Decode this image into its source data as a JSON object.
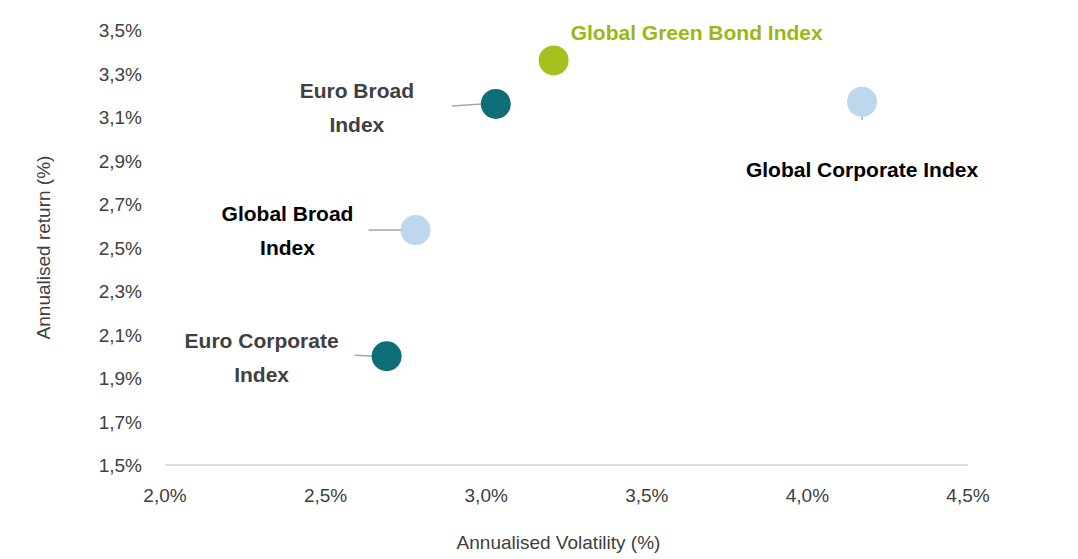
{
  "chart_data": {
    "type": "scatter",
    "xlabel": "Annualised Volatility (%)",
    "ylabel": "Annualised return (%)",
    "marker": "circle",
    "xlim": [
      2.0,
      4.5
    ],
    "xticks": [
      {
        "value": 2.0,
        "label": "2,0%"
      },
      {
        "value": 2.5,
        "label": "2,5%"
      },
      {
        "value": 3.0,
        "label": "3,0%"
      },
      {
        "value": 3.5,
        "label": "3,5%"
      },
      {
        "value": 4.0,
        "label": "4,0%"
      },
      {
        "value": 4.5,
        "label": "4,5%"
      }
    ],
    "ylim": [
      1.5,
      3.5
    ],
    "yticks": [
      {
        "value": 1.5,
        "label": "1,5%"
      },
      {
        "value": 1.7,
        "label": "1,7%"
      },
      {
        "value": 1.9,
        "label": "1,9%"
      },
      {
        "value": 2.1,
        "label": "2,1%"
      },
      {
        "value": 2.3,
        "label": "2,3%"
      },
      {
        "value": 2.5,
        "label": "2,5%"
      },
      {
        "value": 2.7,
        "label": "2,7%"
      },
      {
        "value": 2.9,
        "label": "2,9%"
      },
      {
        "value": 3.1,
        "label": "3,1%"
      },
      {
        "value": 3.3,
        "label": "3,3%"
      },
      {
        "value": 3.5,
        "label": "3,5%"
      }
    ],
    "grid": false,
    "series": [
      {
        "name": "Global Green Bond Index",
        "color": "#a5c21c",
        "x": [
          3.21
        ],
        "values": [
          3.36
        ]
      },
      {
        "name": "Euro Broad Index",
        "color": "#0e6e78",
        "x": [
          3.03
        ],
        "values": [
          3.16
        ]
      },
      {
        "name": "Global Corporate Index",
        "color": "#bdd7ee",
        "x": [
          4.17
        ],
        "values": [
          3.17
        ]
      },
      {
        "name": "Global Broad Index",
        "color": "#bdd7ee",
        "x": [
          2.78
        ],
        "values": [
          2.58
        ]
      },
      {
        "name": "Euro Corporate Index",
        "color": "#0e6e78",
        "x": [
          2.69
        ],
        "values": [
          2.0
        ]
      }
    ]
  }
}
